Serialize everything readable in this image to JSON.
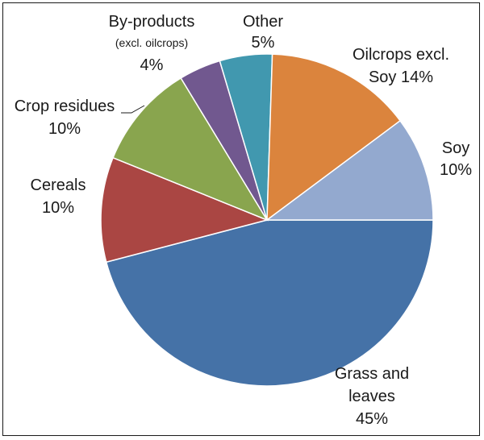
{
  "chart_data": {
    "type": "pie",
    "slices": [
      {
        "name": "Grass and leaves",
        "value": 45,
        "color": "#4572a7",
        "label_lines": [
          "Grass and",
          "leaves",
          "45%"
        ]
      },
      {
        "name": "Cereals",
        "value": 10,
        "color": "#aa4643",
        "label_lines": [
          "Cereals",
          "10%"
        ]
      },
      {
        "name": "Crop residues",
        "value": 10,
        "color": "#89a54e",
        "label_lines": [
          "Crop residues",
          "10%"
        ]
      },
      {
        "name": "By-products (excl. oilcrops)",
        "value": 4,
        "color": "#71588f",
        "label_lines": [
          "By-products",
          "(excl. oilcrops)",
          "4%"
        ]
      },
      {
        "name": "Other",
        "value": 5,
        "color": "#4198af",
        "label_lines": [
          "Other",
          "5%"
        ]
      },
      {
        "name": "Oilcrops excl. Soy",
        "value": 14,
        "color": "#db843d",
        "label_lines": [
          "Oilcrops  excl.",
          "Soy 14%"
        ]
      },
      {
        "name": "Soy",
        "value": 10,
        "color": "#93a9cf",
        "label_lines": [
          "Soy",
          "10%"
        ]
      }
    ],
    "start_angle_deg": 90,
    "direction": "clockwise",
    "legend": "none"
  }
}
